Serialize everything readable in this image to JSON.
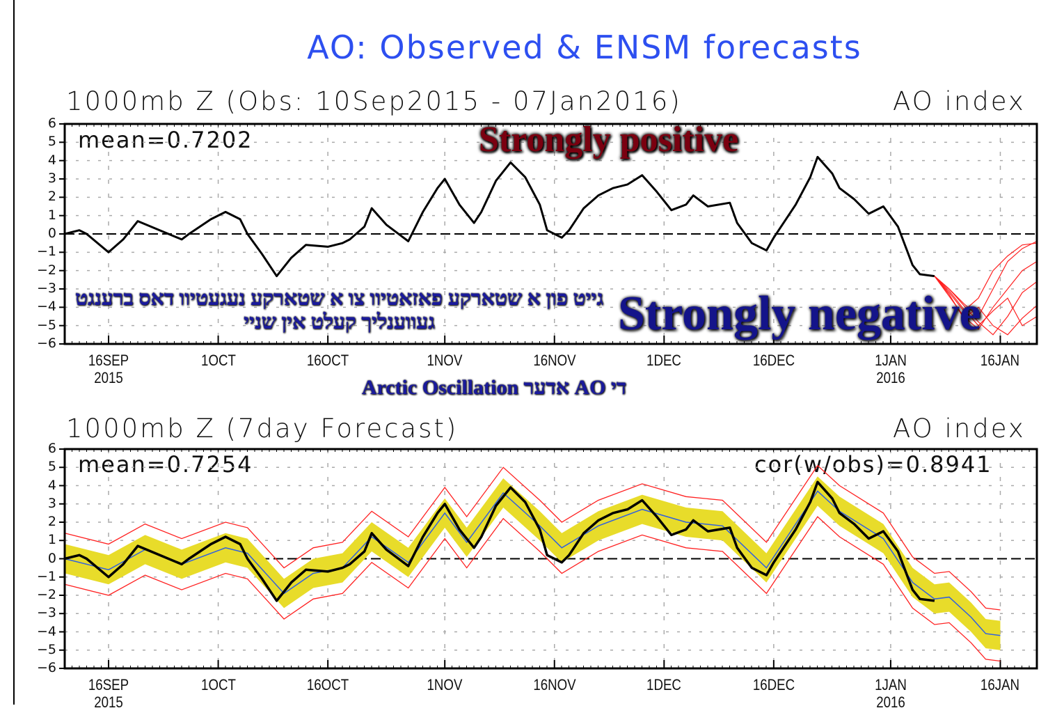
{
  "title": "AO: Observed & ENSM forecasts",
  "annotations": {
    "strong_positive": "Strongly positive",
    "strong_negative": "Strongly negative",
    "line1": "די AO אדער Arctic Oscillation",
    "line2": "גייט פון א שטארקע פאזאטיוו צו א שטארקע נעגעטיוו דאס ברענגט געווענליך קעלט אין שניי"
  },
  "chart_data": [
    {
      "type": "line",
      "title": "1000mb Z (Obs: 10Sep2015 - 07Jan2016)",
      "right_label": "AO index",
      "stat_label": "mean=0.7202",
      "xlim": [
        "2015-09-10",
        "2016-01-21"
      ],
      "ylim": [
        -6,
        6
      ],
      "yticks": [
        6,
        5,
        4,
        3,
        2,
        1,
        0,
        -1,
        -2,
        -3,
        -4,
        -5,
        -6
      ],
      "xticks": [
        {
          "date": "2015-09-16",
          "label": "16SEP",
          "sub": "2015"
        },
        {
          "date": "2015-10-01",
          "label": "1OCT"
        },
        {
          "date": "2015-10-16",
          "label": "16OCT"
        },
        {
          "date": "2015-11-01",
          "label": "1NOV"
        },
        {
          "date": "2015-11-16",
          "label": "16NOV"
        },
        {
          "date": "2015-12-01",
          "label": "1DEC"
        },
        {
          "date": "2015-12-16",
          "label": "16DEC"
        },
        {
          "date": "2016-01-01",
          "label": "1JAN",
          "sub": "2016"
        },
        {
          "date": "2016-01-16",
          "label": "16JAN"
        }
      ],
      "grid": true,
      "colors": {
        "observed": "#000000",
        "ensemble": "#ff2020"
      },
      "observed": [
        [
          "2015-09-10",
          0
        ],
        [
          "2015-09-12",
          0.2
        ],
        [
          "2015-09-13",
          0
        ],
        [
          "2015-09-16",
          -1.0
        ],
        [
          "2015-09-18",
          -0.3
        ],
        [
          "2015-09-20",
          0.7
        ],
        [
          "2015-09-23",
          0.2
        ],
        [
          "2015-09-26",
          -0.3
        ],
        [
          "2015-09-27",
          0
        ],
        [
          "2015-09-30",
          0.8
        ],
        [
          "2015-10-02",
          1.2
        ],
        [
          "2015-10-04",
          0.8
        ],
        [
          "2015-10-05",
          0
        ],
        [
          "2015-10-07",
          -1.1
        ],
        [
          "2015-10-09",
          -2.3
        ],
        [
          "2015-10-11",
          -1.3
        ],
        [
          "2015-10-13",
          -0.6
        ],
        [
          "2015-10-16",
          -0.7
        ],
        [
          "2015-10-18",
          -0.5
        ],
        [
          "2015-10-19",
          -0.3
        ],
        [
          "2015-10-21",
          0.4
        ],
        [
          "2015-10-22",
          1.4
        ],
        [
          "2015-10-24",
          0.5
        ],
        [
          "2015-10-26",
          -0.1
        ],
        [
          "2015-10-27",
          -0.4
        ],
        [
          "2015-10-29",
          1.2
        ],
        [
          "2015-10-31",
          2.5
        ],
        [
          "2015-11-01",
          3.0
        ],
        [
          "2015-11-03",
          1.6
        ],
        [
          "2015-11-05",
          0.6
        ],
        [
          "2015-11-06",
          1.2
        ],
        [
          "2015-11-08",
          2.9
        ],
        [
          "2015-11-10",
          3.9
        ],
        [
          "2015-11-12",
          3.1
        ],
        [
          "2015-11-14",
          1.6
        ],
        [
          "2015-11-15",
          0.2
        ],
        [
          "2015-11-17",
          -0.2
        ],
        [
          "2015-11-18",
          0.2
        ],
        [
          "2015-11-20",
          1.4
        ],
        [
          "2015-11-22",
          2.1
        ],
        [
          "2015-11-24",
          2.5
        ],
        [
          "2015-11-26",
          2.7
        ],
        [
          "2015-11-28",
          3.2
        ],
        [
          "2015-11-30",
          2.3
        ],
        [
          "2015-12-02",
          1.3
        ],
        [
          "2015-12-04",
          1.6
        ],
        [
          "2015-12-05",
          2.1
        ],
        [
          "2015-12-07",
          1.5
        ],
        [
          "2015-12-10",
          1.7
        ],
        [
          "2015-12-11",
          0.6
        ],
        [
          "2015-12-13",
          -0.5
        ],
        [
          "2015-12-15",
          -0.9
        ],
        [
          "2015-12-16",
          -0.2
        ],
        [
          "2015-12-19",
          1.6
        ],
        [
          "2015-12-21",
          3.1
        ],
        [
          "2015-12-22",
          4.2
        ],
        [
          "2015-12-24",
          3.3
        ],
        [
          "2015-12-25",
          2.5
        ],
        [
          "2015-12-27",
          1.9
        ],
        [
          "2015-12-29",
          1.1
        ],
        [
          "2015-12-31",
          1.5
        ],
        [
          "2016-01-02",
          0.4
        ],
        [
          "2016-01-04",
          -1.7
        ],
        [
          "2016-01-05",
          -2.2
        ],
        [
          "2016-01-07",
          -2.3
        ]
      ],
      "ensemble_dates": [
        "2016-01-07",
        "2016-01-09",
        "2016-01-11",
        "2016-01-13",
        "2016-01-15",
        "2016-01-17",
        "2016-01-19",
        "2016-01-21"
      ],
      "ensemble_members": [
        [
          -2.3,
          -3.0,
          -3.8,
          -4.5,
          -3.0,
          -1.5,
          -0.8,
          -0.4
        ],
        [
          -2.3,
          -3.2,
          -4.2,
          -3.5,
          -2.0,
          -1.2,
          -0.6,
          -0.5
        ],
        [
          -2.3,
          -3.4,
          -4.5,
          -5.2,
          -4.0,
          -3.0,
          -2.0,
          -1.5
        ],
        [
          -2.3,
          -3.0,
          -3.9,
          -4.8,
          -5.5,
          -4.5,
          -3.2,
          -2.6
        ],
        [
          -2.3,
          -3.3,
          -4.6,
          -4.0,
          -5.0,
          -5.5,
          -4.6,
          -3.9
        ],
        [
          -2.3,
          -3.1,
          -4.1,
          -5.0,
          -4.2,
          -3.5,
          -5.0,
          -4.5
        ]
      ]
    },
    {
      "type": "line",
      "title": "1000mb Z (7day Forecast)",
      "right_label": "AO index",
      "stat_label": "mean=0.7254",
      "stat_label_right": "cor(w/obs)=0.8941",
      "xlim": [
        "2015-09-10",
        "2016-01-21"
      ],
      "ylim": [
        -6,
        6
      ],
      "grid": true,
      "colors": {
        "observed": "#000000",
        "forecast_mean": "#3060e0",
        "spread_band": "#e8dc2a",
        "envelope": "#ff2020"
      },
      "forecast_mean": [
        [
          "2015-09-10",
          0
        ],
        [
          "2015-09-16",
          -0.6
        ],
        [
          "2015-09-21",
          0.5
        ],
        [
          "2015-09-26",
          -0.3
        ],
        [
          "2015-10-02",
          0.6
        ],
        [
          "2015-10-05",
          0.3
        ],
        [
          "2015-10-10",
          -1.9
        ],
        [
          "2015-10-14",
          -0.8
        ],
        [
          "2015-10-18",
          -0.5
        ],
        [
          "2015-10-22",
          1.2
        ],
        [
          "2015-10-27",
          -0.2
        ],
        [
          "2015-11-01",
          2.5
        ],
        [
          "2015-11-04",
          0.9
        ],
        [
          "2015-11-09",
          3.6
        ],
        [
          "2015-11-14",
          1.8
        ],
        [
          "2015-11-17",
          0.6
        ],
        [
          "2015-11-22",
          1.8
        ],
        [
          "2015-11-28",
          2.7
        ],
        [
          "2015-12-04",
          2.0
        ],
        [
          "2015-12-09",
          1.8
        ],
        [
          "2015-12-15",
          -0.5
        ],
        [
          "2015-12-22",
          3.7
        ],
        [
          "2015-12-25",
          2.6
        ],
        [
          "2015-12-31",
          1.1
        ],
        [
          "2016-01-04",
          -1.3
        ],
        [
          "2016-01-07",
          -2.2
        ],
        [
          "2016-01-09",
          -2.1
        ],
        [
          "2016-01-12",
          -3.2
        ],
        [
          "2016-01-14",
          -4.1
        ],
        [
          "2016-01-16",
          -4.2
        ]
      ],
      "band_halfwidth": 0.8,
      "envelope_halfwidth": 1.4
    }
  ]
}
